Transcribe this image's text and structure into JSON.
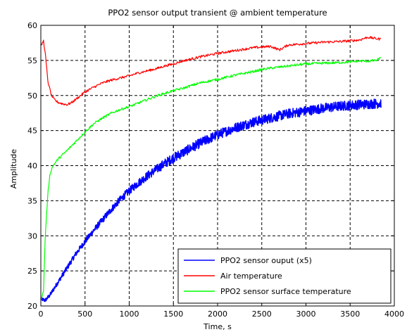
{
  "chart_data": {
    "type": "line",
    "title": "PPO2 sensor output transient @ ambient temperature",
    "xlabel": "Time, s",
    "ylabel": "Amplitude",
    "xlim": [
      0,
      4000
    ],
    "ylim": [
      20,
      60
    ],
    "xticks": [
      0,
      500,
      1000,
      1500,
      2000,
      2500,
      3000,
      3500,
      4000
    ],
    "yticks": [
      20,
      25,
      30,
      35,
      40,
      45,
      50,
      55,
      60
    ],
    "grid": true,
    "grid_style": "dashed",
    "legend_position": "bottom-right",
    "series": [
      {
        "name": "PPO2 sensor ouput (x5)",
        "color": "#0000ff",
        "noisy": true,
        "x": [
          0,
          50,
          100,
          200,
          300,
          400,
          500,
          600,
          700,
          800,
          900,
          1000,
          1100,
          1200,
          1300,
          1400,
          1500,
          1600,
          1700,
          1800,
          1900,
          2000,
          2200,
          2400,
          2600,
          2800,
          3000,
          3200,
          3400,
          3600,
          3850
        ],
        "y": [
          21,
          20.8,
          21.5,
          23.5,
          25.5,
          27.5,
          29.2,
          30.8,
          32.3,
          33.8,
          35.2,
          36.4,
          37.5,
          38.5,
          39.4,
          40.3,
          41.1,
          41.8,
          42.5,
          43.2,
          43.8,
          44.4,
          45.4,
          46.2,
          46.8,
          47.4,
          47.8,
          48.2,
          48.5,
          48.7,
          48.9
        ]
      },
      {
        "name": "Air temperature",
        "color": "#ff0000",
        "noisy": false,
        "x": [
          0,
          30,
          50,
          80,
          120,
          160,
          200,
          250,
          300,
          350,
          400,
          450,
          500,
          600,
          700,
          800,
          900,
          1000,
          1100,
          1200,
          1300,
          1400,
          1500,
          1600,
          1800,
          2000,
          2200,
          2400,
          2500,
          2600,
          2700,
          2800,
          3000,
          3200,
          3400,
          3600,
          3700,
          3800,
          3850
        ],
        "y": [
          57,
          57.8,
          56,
          52,
          50,
          49.3,
          49,
          48.8,
          48.7,
          49,
          49.5,
          50,
          50.5,
          51.2,
          51.8,
          52.2,
          52.5,
          52.8,
          53.2,
          53.5,
          53.8,
          54.2,
          54.5,
          54.9,
          55.5,
          56,
          56.4,
          56.8,
          56.9,
          57,
          56.5,
          57.2,
          57.4,
          57.6,
          57.7,
          57.9,
          58.3,
          58.1,
          58
        ]
      },
      {
        "name": "PPO2 sensor surface temperature",
        "color": "#00ff00",
        "noisy": false,
        "x": [
          0,
          30,
          50,
          80,
          100,
          120,
          150,
          200,
          250,
          300,
          400,
          500,
          600,
          700,
          800,
          900,
          1000,
          1100,
          1200,
          1300,
          1400,
          1500,
          1600,
          1700,
          1800,
          2000,
          2200,
          2400,
          2500,
          2600,
          2800,
          3000,
          3200,
          3400,
          3500,
          3600,
          3700,
          3800,
          3850
        ],
        "y": [
          21,
          22,
          30,
          36,
          38.5,
          39.5,
          40.2,
          41,
          41.6,
          42.2,
          43.5,
          44.8,
          46,
          46.8,
          47.5,
          48,
          48.4,
          48.9,
          49.4,
          49.9,
          50.3,
          50.7,
          51,
          51.4,
          51.8,
          52.3,
          52.9,
          53.4,
          53.7,
          53.9,
          54.2,
          54.5,
          54.6,
          54.7,
          54.8,
          54.9,
          54.9,
          55,
          55.4
        ]
      }
    ]
  }
}
